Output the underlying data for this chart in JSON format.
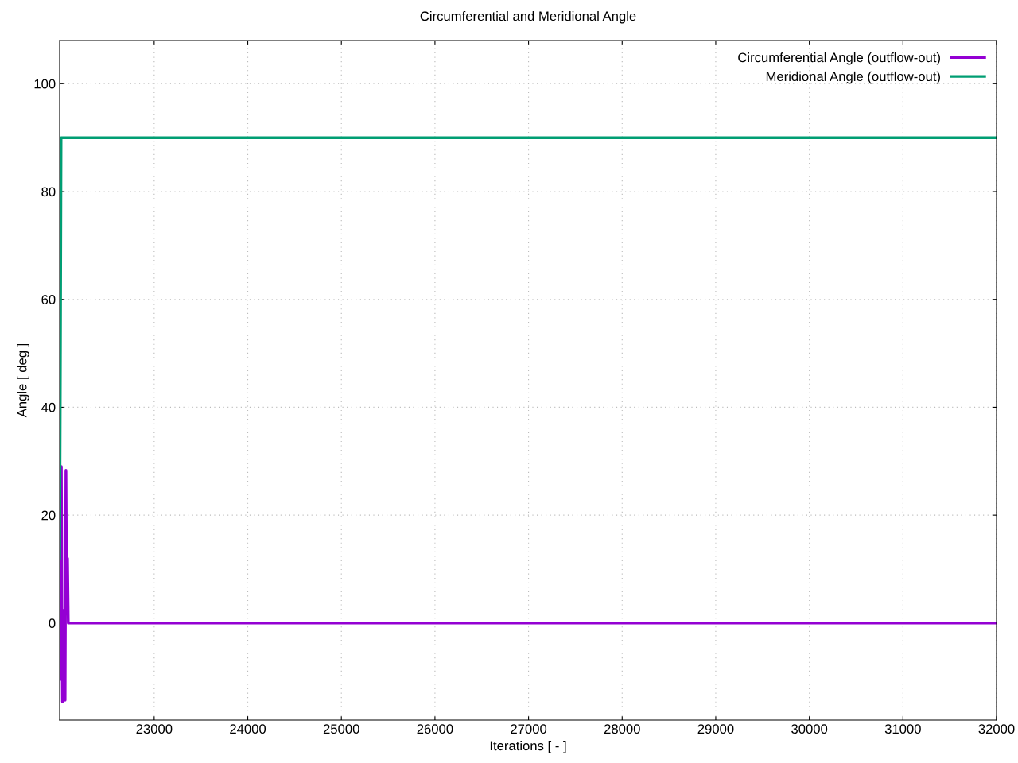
{
  "chart_data": {
    "type": "line",
    "title": "Circumferential and Meridional Angle",
    "xlabel": "Iterations [ - ]",
    "ylabel": "Angle [ deg ]",
    "xlim": [
      21990,
      32000
    ],
    "xticks": [
      23000,
      24000,
      25000,
      26000,
      27000,
      28000,
      29000,
      30000,
      31000,
      32000
    ],
    "ylim": [
      -18,
      108
    ],
    "yticks": [
      0,
      20,
      40,
      60,
      80,
      100
    ],
    "grid": true,
    "legend": "top right",
    "line_style": "solid",
    "marker": "none",
    "series": [
      {
        "name": "Circumferential Angle (outflow-out)",
        "color": "#9400d3",
        "x": [
          21990,
          21993,
          21997,
          22003,
          22008,
          22014,
          22020,
          22031,
          22040,
          22048,
          22057,
          22065,
          22074,
          22082,
          22091,
          22099,
          32000
        ],
        "values": [
          33.5,
          -10.5,
          12,
          -4.5,
          29,
          2,
          -14.6,
          -14.3,
          2.4,
          -14.3,
          28.3,
          2.5,
          12,
          0,
          0,
          0,
          0
        ]
      },
      {
        "name": "Meridional Angle (outflow-out)",
        "color": "#009e73",
        "x": [
          21990,
          21998,
          22005,
          32000
        ],
        "values": [
          12,
          50.7,
          90,
          90
        ]
      }
    ]
  }
}
